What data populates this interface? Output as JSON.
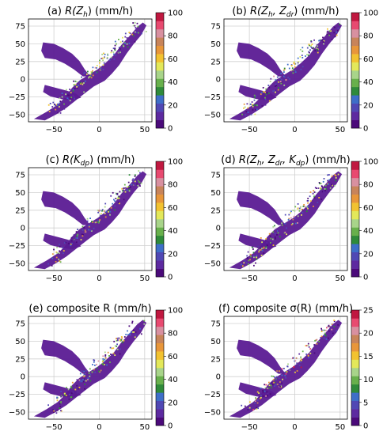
{
  "chart_data": [
    {
      "type": "heatmap",
      "panel": "a",
      "title_prefix": "(a)",
      "title_main": "R(Z",
      "title_sub": "h",
      "title_suffix": ") (mm/h)",
      "x_ticks": [
        -50,
        0,
        50
      ],
      "y_ticks": [
        75,
        50,
        25,
        0,
        -25,
        -50
      ],
      "xlim": [
        -78,
        58
      ],
      "ylim": [
        -60,
        85
      ],
      "colorbar_ticks": [
        0,
        20,
        40,
        60,
        80,
        100
      ],
      "colorbar_range": [
        0,
        100
      ],
      "colormap": [
        "#4b0a7a",
        "#5d2aa0",
        "#5048b4",
        "#3e6ec8",
        "#2f8a3a",
        "#68b04c",
        "#a8d48a",
        "#e3e85a",
        "#f2c230",
        "#e8963a",
        "#c8845a",
        "#d890a0",
        "#e84a70",
        "#c01840"
      ]
    },
    {
      "type": "heatmap",
      "panel": "b",
      "title_prefix": "(b)",
      "title_main": "R(Z",
      "title_sub": "h",
      "title_mid": ", Z",
      "title_sub2": "dr",
      "title_suffix": ") (mm/h)",
      "x_ticks": [
        -50,
        0,
        50
      ],
      "y_ticks": [
        75,
        50,
        25,
        0,
        -25,
        -50
      ],
      "xlim": [
        -78,
        58
      ],
      "ylim": [
        -60,
        85
      ],
      "colorbar_ticks": [
        0,
        20,
        40,
        60,
        80,
        100
      ],
      "colorbar_range": [
        0,
        100
      ],
      "colormap": [
        "#4b0a7a",
        "#5d2aa0",
        "#5048b4",
        "#3e6ec8",
        "#2f8a3a",
        "#68b04c",
        "#a8d48a",
        "#e3e85a",
        "#f2c230",
        "#e8963a",
        "#c8845a",
        "#d890a0",
        "#e84a70",
        "#c01840"
      ]
    },
    {
      "type": "heatmap",
      "panel": "c",
      "title_prefix": "(c)",
      "title_main": "R(K",
      "title_sub": "dp",
      "title_suffix": ") (mm/h)",
      "x_ticks": [
        -50,
        0,
        50
      ],
      "y_ticks": [
        75,
        50,
        25,
        0,
        -25,
        -50
      ],
      "xlim": [
        -78,
        58
      ],
      "ylim": [
        -60,
        85
      ],
      "colorbar_ticks": [
        0,
        20,
        40,
        60,
        80,
        100
      ],
      "colorbar_range": [
        0,
        100
      ],
      "colormap": [
        "#4b0a7a",
        "#5d2aa0",
        "#5048b4",
        "#3e6ec8",
        "#2f8a3a",
        "#68b04c",
        "#a8d48a",
        "#e3e85a",
        "#f2c230",
        "#e8963a",
        "#c8845a",
        "#d890a0",
        "#e84a70",
        "#c01840"
      ]
    },
    {
      "type": "heatmap",
      "panel": "d",
      "title_prefix": "(d)",
      "title_main": "R(Z",
      "title_sub": "h",
      "title_mid": ", Z",
      "title_sub2": "dr",
      "title_mid2": ", K",
      "title_sub3": "dp",
      "title_suffix": ") (mm/h)",
      "x_ticks": [
        -50,
        0,
        50
      ],
      "y_ticks": [
        75,
        50,
        25,
        0,
        -25,
        -50
      ],
      "xlim": [
        -78,
        58
      ],
      "ylim": [
        -60,
        85
      ],
      "colorbar_ticks": [
        0,
        20,
        40,
        60,
        80,
        100
      ],
      "colorbar_range": [
        0,
        100
      ],
      "colormap": [
        "#4b0a7a",
        "#5d2aa0",
        "#5048b4",
        "#3e6ec8",
        "#2f8a3a",
        "#68b04c",
        "#a8d48a",
        "#e3e85a",
        "#f2c230",
        "#e8963a",
        "#c8845a",
        "#d890a0",
        "#e84a70",
        "#c01840"
      ]
    },
    {
      "type": "heatmap",
      "panel": "e",
      "title_prefix": "(e)",
      "title_main": "composite R",
      "title_suffix": " (mm/h)",
      "x_ticks": [
        -50,
        0,
        50
      ],
      "y_ticks": [
        75,
        50,
        25,
        0,
        -25,
        -50
      ],
      "xlim": [
        -78,
        58
      ],
      "ylim": [
        -60,
        85
      ],
      "colorbar_ticks": [
        0,
        20,
        40,
        60,
        80,
        100
      ],
      "colorbar_range": [
        0,
        100
      ],
      "colormap": [
        "#4b0a7a",
        "#5d2aa0",
        "#5048b4",
        "#3e6ec8",
        "#2f8a3a",
        "#68b04c",
        "#a8d48a",
        "#e3e85a",
        "#f2c230",
        "#e8963a",
        "#c8845a",
        "#d890a0",
        "#e84a70",
        "#c01840"
      ]
    },
    {
      "type": "heatmap",
      "panel": "f",
      "title_prefix": "(f)",
      "title_main": "composite σ(R)",
      "title_suffix": " (mm/h)",
      "x_ticks": [
        -50,
        0,
        50
      ],
      "y_ticks": [
        75,
        50,
        25,
        0,
        -25,
        -50
      ],
      "xlim": [
        -78,
        58
      ],
      "ylim": [
        -60,
        85
      ],
      "colorbar_ticks": [
        0,
        5,
        10,
        15,
        20,
        25
      ],
      "colorbar_range": [
        0,
        25
      ],
      "colormap": [
        "#4b0a7a",
        "#5d2aa0",
        "#5048b4",
        "#3e6ec8",
        "#2f8a3a",
        "#68b04c",
        "#a8d48a",
        "#e3e85a",
        "#f2c230",
        "#e8963a",
        "#c8845a",
        "#d890a0",
        "#e84a70",
        "#c01840"
      ]
    }
  ]
}
